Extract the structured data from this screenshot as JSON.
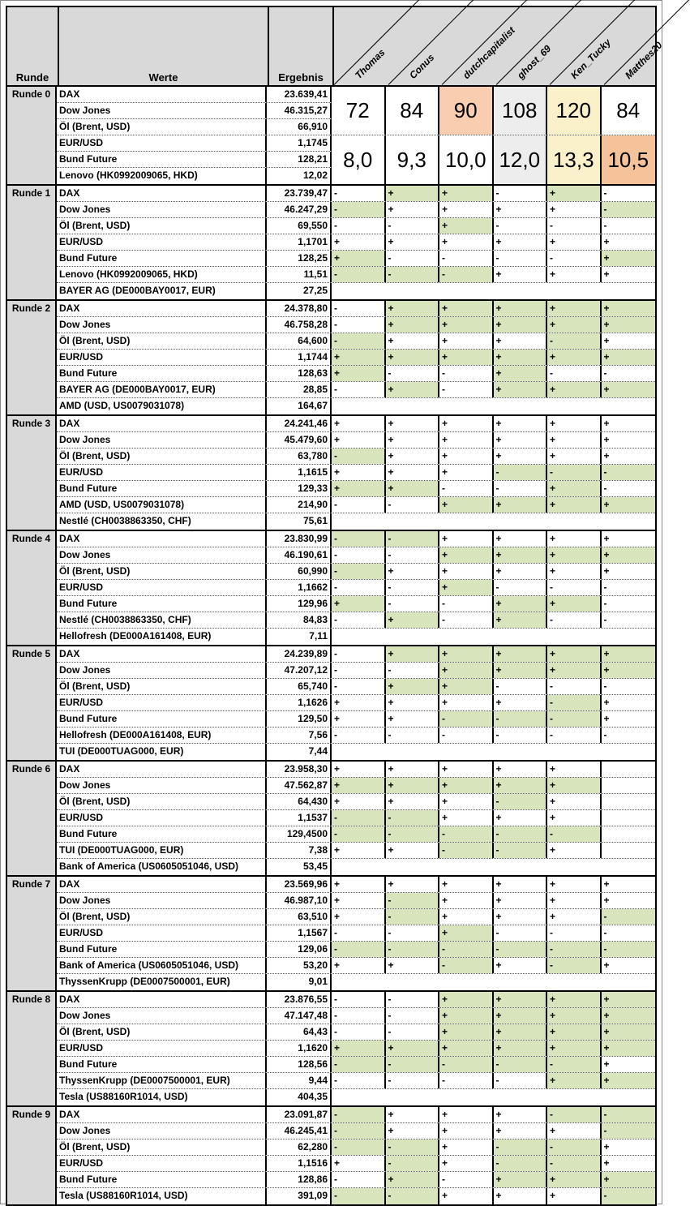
{
  "header": {
    "runde": "Runde",
    "werte": "Werte",
    "ergebnis": "Ergebnis",
    "players": [
      "Thomas",
      "Conus",
      "dutchcapitalist",
      "ghost_69",
      "Ken_Tucky",
      "Matthes20"
    ]
  },
  "colors": {
    "green": "#D8E4BC",
    "header": "#D9D9D9",
    "peach": "#F8CDB0",
    "gray": "#EDEDED",
    "yellow": "#FAF0CA",
    "orange": "#F5C29A"
  },
  "round0": {
    "label": "Runde 0",
    "rows": [
      [
        "DAX",
        "23.639,41"
      ],
      [
        "Dow Jones",
        "46.315,27"
      ],
      [
        "Öl (Brent, USD)",
        "66,910"
      ],
      [
        "EUR/USD",
        "1,1745"
      ],
      [
        "Bund Future",
        "128,21"
      ],
      [
        "Lenovo (HK0992009065, HKD)",
        "12,02"
      ]
    ],
    "scores": [
      {
        "value": "72",
        "bg": "none"
      },
      {
        "value": "84",
        "bg": "none"
      },
      {
        "value": "90",
        "bg": "peach"
      },
      {
        "value": "108",
        "bg": "gray"
      },
      {
        "value": "120",
        "bg": "yellow"
      },
      {
        "value": "84",
        "bg": "none"
      }
    ],
    "quotas": [
      {
        "value": "8,0",
        "bg": "none"
      },
      {
        "value": "9,3",
        "bg": "none"
      },
      {
        "value": "10,0",
        "bg": "none"
      },
      {
        "value": "12,0",
        "bg": "gray"
      },
      {
        "value": "13,3",
        "bg": "yellow"
      },
      {
        "value": "10,5",
        "bg": "orange"
      }
    ]
  },
  "rounds": [
    {
      "label": "Runde 1",
      "rows": [
        {
          "name": "DAX",
          "result": "23.739,47",
          "cells": [
            "-",
            "+g",
            "+g",
            "-",
            "+g",
            "-"
          ]
        },
        {
          "name": "Dow Jones",
          "result": "46.247,29",
          "cells": [
            "-g",
            "+",
            "+",
            "+",
            "+",
            "-g"
          ]
        },
        {
          "name": "Öl (Brent, USD)",
          "result": "69,550",
          "cells": [
            "-",
            "-",
            "+g",
            "-",
            "-",
            "-"
          ]
        },
        {
          "name": "EUR/USD",
          "result": "1,1701",
          "cells": [
            "+",
            "+",
            "+",
            "+",
            "+",
            "+"
          ]
        },
        {
          "name": "Bund Future",
          "result": "128,25",
          "cells": [
            "+g",
            "-",
            "-",
            "-",
            "-",
            "+g"
          ]
        },
        {
          "name": "Lenovo (HK0992009065, HKD)",
          "result": "11,51",
          "cells": [
            "-g",
            "-g",
            "-g",
            "+",
            "+",
            "+"
          ]
        },
        {
          "name": "BAYER AG (DE000BAY0017, EUR)",
          "result": "27,25",
          "cells": null
        }
      ]
    },
    {
      "label": "Runde 2",
      "rows": [
        {
          "name": "DAX",
          "result": "24.378,80",
          "cells": [
            "-",
            "+g",
            "+g",
            "+g",
            "+g",
            "+g"
          ]
        },
        {
          "name": "Dow Jones",
          "result": "46.758,28",
          "cells": [
            "-",
            "+g",
            "+g",
            "+g",
            "+g",
            "+g"
          ]
        },
        {
          "name": "Öl (Brent, USD)",
          "result": "64,600",
          "cells": [
            "-g",
            "+",
            "+",
            "+",
            "-g",
            "+"
          ]
        },
        {
          "name": "EUR/USD",
          "result": "1,1744",
          "cells": [
            "+g",
            "+g",
            "+g",
            "+g",
            "+g",
            "+g"
          ]
        },
        {
          "name": "Bund Future",
          "result": "128,63",
          "cells": [
            "+g",
            "-",
            "-",
            "+g",
            "-",
            "-"
          ]
        },
        {
          "name": "BAYER AG (DE000BAY0017, EUR)",
          "result": "28,85",
          "cells": [
            "-",
            "+g",
            "-",
            "+g",
            "+g",
            "+g"
          ]
        },
        {
          "name": "AMD (USD, US0079031078)",
          "result": "164,67",
          "cells": null
        }
      ]
    },
    {
      "label": "Runde 3",
      "rows": [
        {
          "name": "DAX",
          "result": "24.241,46",
          "cells": [
            "+",
            "+",
            "+",
            "+",
            "+",
            "+"
          ]
        },
        {
          "name": "Dow Jones",
          "result": "45.479,60",
          "cells": [
            "+",
            "+",
            "+",
            "+",
            "+",
            "+"
          ]
        },
        {
          "name": "Öl (Brent, USD)",
          "result": "63,780",
          "cells": [
            "-g",
            "+",
            "+",
            "+",
            "+",
            "+"
          ]
        },
        {
          "name": "EUR/USD",
          "result": "1,1615",
          "cells": [
            "+",
            "+",
            "+",
            "-g",
            "-g",
            "-g"
          ]
        },
        {
          "name": "Bund Future",
          "result": "129,33",
          "cells": [
            "+g",
            "+g",
            "-",
            "-",
            "+g",
            "-"
          ]
        },
        {
          "name": "AMD (USD, US0079031078)",
          "result": "214,90",
          "cells": [
            "-",
            "-",
            "+g",
            "+g",
            "+g",
            "+g"
          ]
        },
        {
          "name": "Nestlé (CH0038863350, CHF)",
          "result": "75,61",
          "cells": null
        }
      ]
    },
    {
      "label": "Runde 4",
      "rows": [
        {
          "name": "DAX",
          "result": "23.830,99",
          "cells": [
            "-g",
            "-g",
            "+",
            "+",
            "+",
            "+"
          ]
        },
        {
          "name": "Dow Jones",
          "result": "46.190,61",
          "cells": [
            "-",
            "-",
            "+g",
            "+g",
            "+g",
            "+g"
          ]
        },
        {
          "name": "Öl (Brent, USD)",
          "result": "60,990",
          "cells": [
            "-g",
            "+",
            "+",
            "+",
            "+",
            "+"
          ]
        },
        {
          "name": "EUR/USD",
          "result": "1,1662",
          "cells": [
            "-",
            "-",
            "+g",
            "-",
            "-",
            "-"
          ]
        },
        {
          "name": "Bund Future",
          "result": "129,96",
          "cells": [
            "+g",
            "-",
            "-",
            "+g",
            "+g",
            "-"
          ]
        },
        {
          "name": "Nestlé (CH0038863350, CHF)",
          "result": "84,83",
          "cells": [
            "-",
            "+g",
            "-",
            "+g",
            "-",
            "-"
          ]
        },
        {
          "name": "Hellofresh (DE000A161408, EUR)",
          "result": "7,11",
          "cells": null
        }
      ]
    },
    {
      "label": "Runde 5",
      "rows": [
        {
          "name": "DAX",
          "result": "24.239,89",
          "cells": [
            "-",
            "+g",
            "+g",
            "+g",
            "+g",
            "+g"
          ]
        },
        {
          "name": "Dow Jones",
          "result": "47.207,12",
          "cells": [
            "-",
            "-",
            "+g",
            "+g",
            "+g",
            "+g"
          ]
        },
        {
          "name": "Öl (Brent, USD)",
          "result": "65,740",
          "cells": [
            "-",
            "+g",
            "+g",
            "-",
            "-",
            "-"
          ]
        },
        {
          "name": "EUR/USD",
          "result": "1,1626",
          "cells": [
            "+",
            "+",
            "+",
            "+",
            "-g",
            "+"
          ]
        },
        {
          "name": "Bund Future",
          "result": "129,50",
          "cells": [
            "+",
            "+",
            "-g",
            "-g",
            "-g",
            "+"
          ]
        },
        {
          "name": "Hellofresh (DE000A161408, EUR)",
          "result": "7,56",
          "cells": [
            "-",
            "-",
            "-",
            "-",
            "-",
            "-"
          ]
        },
        {
          "name": "TUI (DE000TUAG000, EUR)",
          "result": "7,44",
          "cells": null
        }
      ]
    },
    {
      "label": "Runde 6",
      "rows": [
        {
          "name": "DAX",
          "result": "23.958,30",
          "cells": [
            "+",
            "+",
            "+",
            "+",
            "+",
            ""
          ]
        },
        {
          "name": "Dow Jones",
          "result": "47.562,87",
          "cells": [
            "+g",
            "+g",
            "+g",
            "+g",
            "+g",
            ""
          ]
        },
        {
          "name": "Öl (Brent, USD)",
          "result": "64,430",
          "cells": [
            "+",
            "+",
            "+",
            "-g",
            "+",
            ""
          ]
        },
        {
          "name": "EUR/USD",
          "result": "1,1537",
          "cells": [
            "-g",
            "-g",
            "+",
            "+",
            "+",
            ""
          ]
        },
        {
          "name": "Bund Future",
          "result": "129,4500",
          "cells": [
            "-g",
            "-g",
            "-g",
            "-g",
            "-g",
            ""
          ]
        },
        {
          "name": "TUI (DE000TUAG000, EUR)",
          "result": "7,38",
          "cells": [
            "+",
            "+",
            "-g",
            "-g",
            "+",
            ""
          ]
        },
        {
          "name": "Bank of America (US0605051046, USD)",
          "result": "53,45",
          "cells": null
        }
      ]
    },
    {
      "label": "Runde 7",
      "rows": [
        {
          "name": "DAX",
          "result": "23.569,96",
          "cells": [
            "+",
            "+",
            "+",
            "+",
            "+",
            "+"
          ]
        },
        {
          "name": "Dow Jones",
          "result": "46.987,10",
          "cells": [
            "+",
            "-g",
            "+",
            "+",
            "+",
            "+"
          ]
        },
        {
          "name": "Öl (Brent, USD)",
          "result": "63,510",
          "cells": [
            "+",
            "-g",
            "+",
            "+",
            "+",
            "-g"
          ]
        },
        {
          "name": "EUR/USD",
          "result": "1,1567",
          "cells": [
            "-",
            "-",
            "+g",
            "-",
            "-",
            "-"
          ]
        },
        {
          "name": "Bund Future",
          "result": "129,06",
          "cells": [
            "-g",
            "-g",
            "-g",
            "-g",
            "-g",
            "-g"
          ]
        },
        {
          "name": "Bank of America (US0605051046, USD)",
          "result": "53,20",
          "cells": [
            "+",
            "+",
            "-g",
            "+",
            "-g",
            "+"
          ]
        },
        {
          "name": "ThyssenKrupp (DE0007500001, EUR)",
          "result": "9,01",
          "cells": null
        }
      ]
    },
    {
      "label": "Runde 8",
      "rows": [
        {
          "name": "DAX",
          "result": "23.876,55",
          "cells": [
            "-",
            "-",
            "+g",
            "+g",
            "+g",
            "+g"
          ]
        },
        {
          "name": "Dow Jones",
          "result": "47.147,48",
          "cells": [
            "-",
            "-",
            "+g",
            "+g",
            "+g",
            "+g"
          ]
        },
        {
          "name": "Öl (Brent, USD)",
          "result": "64,43",
          "cells": [
            "-",
            "-",
            "+g",
            "+g",
            "+g",
            "+g"
          ]
        },
        {
          "name": "EUR/USD",
          "result": "1,1620",
          "cells": [
            "+g",
            "+g",
            "+g",
            "+g",
            "+g",
            "+g"
          ]
        },
        {
          "name": "Bund Future",
          "result": "128,56",
          "cells": [
            "-g",
            "-g",
            "-g",
            "-g",
            "-g",
            "+"
          ]
        },
        {
          "name": "ThyssenKrupp (DE0007500001, EUR)",
          "result": "9,44",
          "cells": [
            "-",
            "-",
            "-",
            "-",
            "+g",
            "+g"
          ]
        },
        {
          "name": "Tesla (US88160R1014, USD)",
          "result": "404,35",
          "cells": null
        }
      ]
    },
    {
      "label": "Runde 9",
      "rows": [
        {
          "name": "DAX",
          "result": "23.091,87",
          "cells": [
            "-g",
            "+",
            "+",
            "+",
            "-g",
            "-g"
          ]
        },
        {
          "name": "Dow Jones",
          "result": "46.245,41",
          "cells": [
            "-g",
            "+",
            "+",
            "+",
            "+",
            "-g"
          ]
        },
        {
          "name": "Öl (Brent, USD)",
          "result": "62,280",
          "cells": [
            "-g",
            "-g",
            "+",
            "-g",
            "-g",
            "+"
          ]
        },
        {
          "name": "EUR/USD",
          "result": "1,1516",
          "cells": [
            "+",
            "-g",
            "+",
            "-g",
            "-g",
            "+"
          ]
        },
        {
          "name": "Bund Future",
          "result": "128,86",
          "cells": [
            "-",
            "+g",
            "-",
            "+g",
            "+g",
            "+g"
          ]
        },
        {
          "name": "Tesla (US88160R1014, USD)",
          "result": "391,09",
          "cells": [
            "-g",
            "-g",
            "+",
            "+",
            "+",
            "-g"
          ]
        }
      ]
    }
  ]
}
